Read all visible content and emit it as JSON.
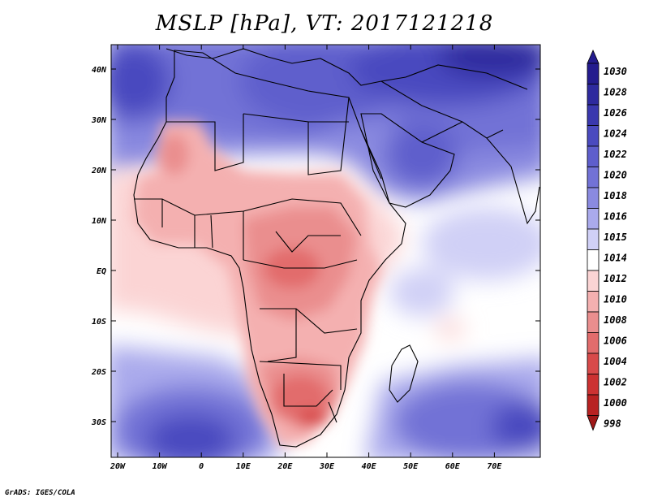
{
  "title": "MSLP [hPa], VT: 2017121218",
  "credit": "GrADS: IGES/COLA",
  "lat_labels": [
    "40N",
    "30N",
    "20N",
    "10N",
    "EQ",
    "10S",
    "20S",
    "30S"
  ],
  "lon_labels": [
    "20W",
    "10W",
    "0",
    "10E",
    "20E",
    "30E",
    "40E",
    "50E",
    "60E",
    "70E"
  ],
  "colorbar": {
    "levels": [
      "1030",
      "1028",
      "1026",
      "1024",
      "1022",
      "1020",
      "1018",
      "1016",
      "1015",
      "1014",
      "1012",
      "1010",
      "1008",
      "1006",
      "1004",
      "1002",
      "1000",
      "998"
    ],
    "colors": [
      "#241c8e",
      "#2e2a9e",
      "#3a38ae",
      "#4a4abf",
      "#5e5ecc",
      "#7272d6",
      "#8a8ae0",
      "#aaaaec",
      "#d0d0f6",
      "#ffffff",
      "#fbd4d4",
      "#f4b0b0",
      "#ea8e8e",
      "#e26c6c",
      "#d84a4a",
      "#cc3232",
      "#b82222",
      "#9e1818"
    ]
  },
  "map": {
    "region": "Africa and surrounding regions",
    "variable": "Mean sea level pressure",
    "units": "hPa",
    "valid_time": "2017121218",
    "lon_range": [
      -25,
      80
    ],
    "lat_range": [
      -36,
      45
    ],
    "colors": {
      "ocean_south": "#c8c8f2",
      "deep_blue": "#3030a8",
      "land_low": "#f4b0b0",
      "border": "#000000"
    }
  }
}
